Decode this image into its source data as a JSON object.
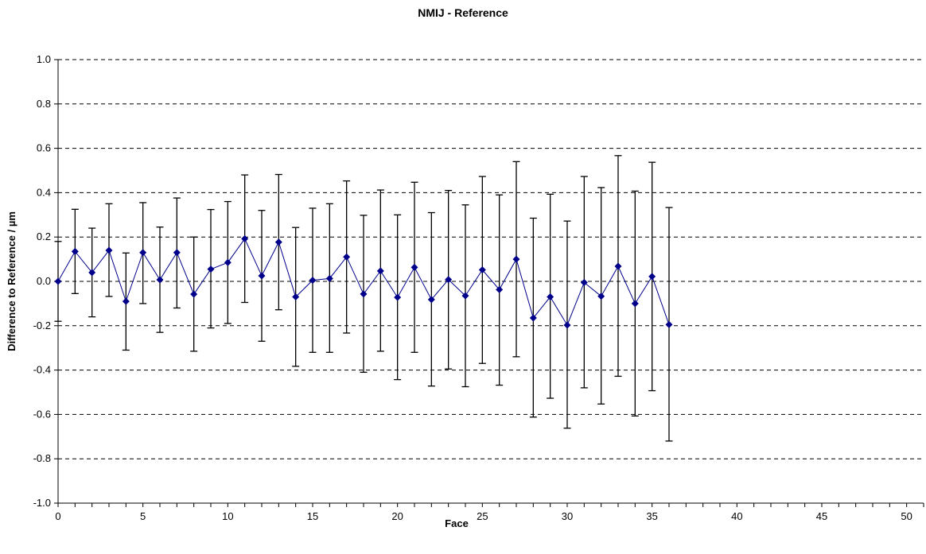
{
  "chart_data": {
    "type": "scatter",
    "title": "NMIJ - Reference",
    "xlabel": "Face",
    "ylabel": "Difference to Reference / µm",
    "xlim": [
      0,
      51
    ],
    "ylim": [
      -1.0,
      1.0
    ],
    "x_ticks": [
      0,
      5,
      10,
      15,
      20,
      25,
      30,
      35,
      40,
      45,
      50
    ],
    "x_tick_labels": [
      "0",
      "5",
      "10",
      "15",
      "20",
      "25",
      "30",
      "35",
      "40",
      "45",
      "50"
    ],
    "y_ticks": [
      -1.0,
      -0.8,
      -0.6,
      -0.4,
      -0.2,
      0.0,
      0.2,
      0.4,
      0.6,
      0.8,
      1.0
    ],
    "y_tick_labels": [
      "-1.0",
      "-0.8",
      "-0.6",
      "-0.4",
      "-0.2",
      "0.0",
      "0.2",
      "0.4",
      "0.6",
      "0.8",
      "1.0"
    ],
    "grid": "horizontal-dashed",
    "legend": "none",
    "marker": "diamond",
    "line_color": "#00008b",
    "marker_color": "#00008b",
    "errorbar_color": "#000000",
    "series": [
      {
        "x": [
          0,
          1,
          2,
          3,
          4,
          5,
          6,
          7,
          8,
          9,
          10,
          11,
          12,
          13,
          14,
          15,
          16,
          17,
          18,
          19,
          20,
          21,
          22,
          23,
          24,
          25,
          26,
          27,
          28,
          29,
          30,
          31,
          32,
          33,
          34,
          35,
          36
        ],
        "y": [
          0.0,
          0.135,
          0.04,
          0.14,
          -0.09,
          0.13,
          0.007,
          0.13,
          -0.058,
          0.055,
          0.085,
          0.192,
          0.025,
          0.177,
          -0.07,
          0.005,
          0.013,
          0.11,
          -0.057,
          0.047,
          -0.072,
          0.063,
          -0.082,
          0.008,
          -0.065,
          0.052,
          -0.037,
          0.1,
          -0.165,
          -0.07,
          -0.197,
          -0.005,
          -0.067,
          0.068,
          -0.1,
          0.022,
          -0.195
        ],
        "y_lower": [
          -0.18,
          -0.055,
          -0.16,
          -0.068,
          -0.31,
          -0.1,
          -0.23,
          -0.12,
          -0.315,
          -0.21,
          -0.19,
          -0.095,
          -0.27,
          -0.128,
          -0.383,
          -0.32,
          -0.32,
          -0.233,
          -0.41,
          -0.315,
          -0.443,
          -0.32,
          -0.472,
          -0.395,
          -0.475,
          -0.37,
          -0.468,
          -0.34,
          -0.612,
          -0.527,
          -0.662,
          -0.48,
          -0.553,
          -0.428,
          -0.607,
          -0.493,
          -0.72
        ],
        "y_upper": [
          0.18,
          0.325,
          0.24,
          0.35,
          0.128,
          0.355,
          0.245,
          0.376,
          0.2,
          0.324,
          0.36,
          0.48,
          0.32,
          0.482,
          0.243,
          0.33,
          0.35,
          0.453,
          0.298,
          0.412,
          0.3,
          0.447,
          0.31,
          0.41,
          0.345,
          0.473,
          0.39,
          0.54,
          0.285,
          0.393,
          0.272,
          0.473,
          0.423,
          0.567,
          0.407,
          0.537,
          0.333
        ]
      }
    ]
  }
}
